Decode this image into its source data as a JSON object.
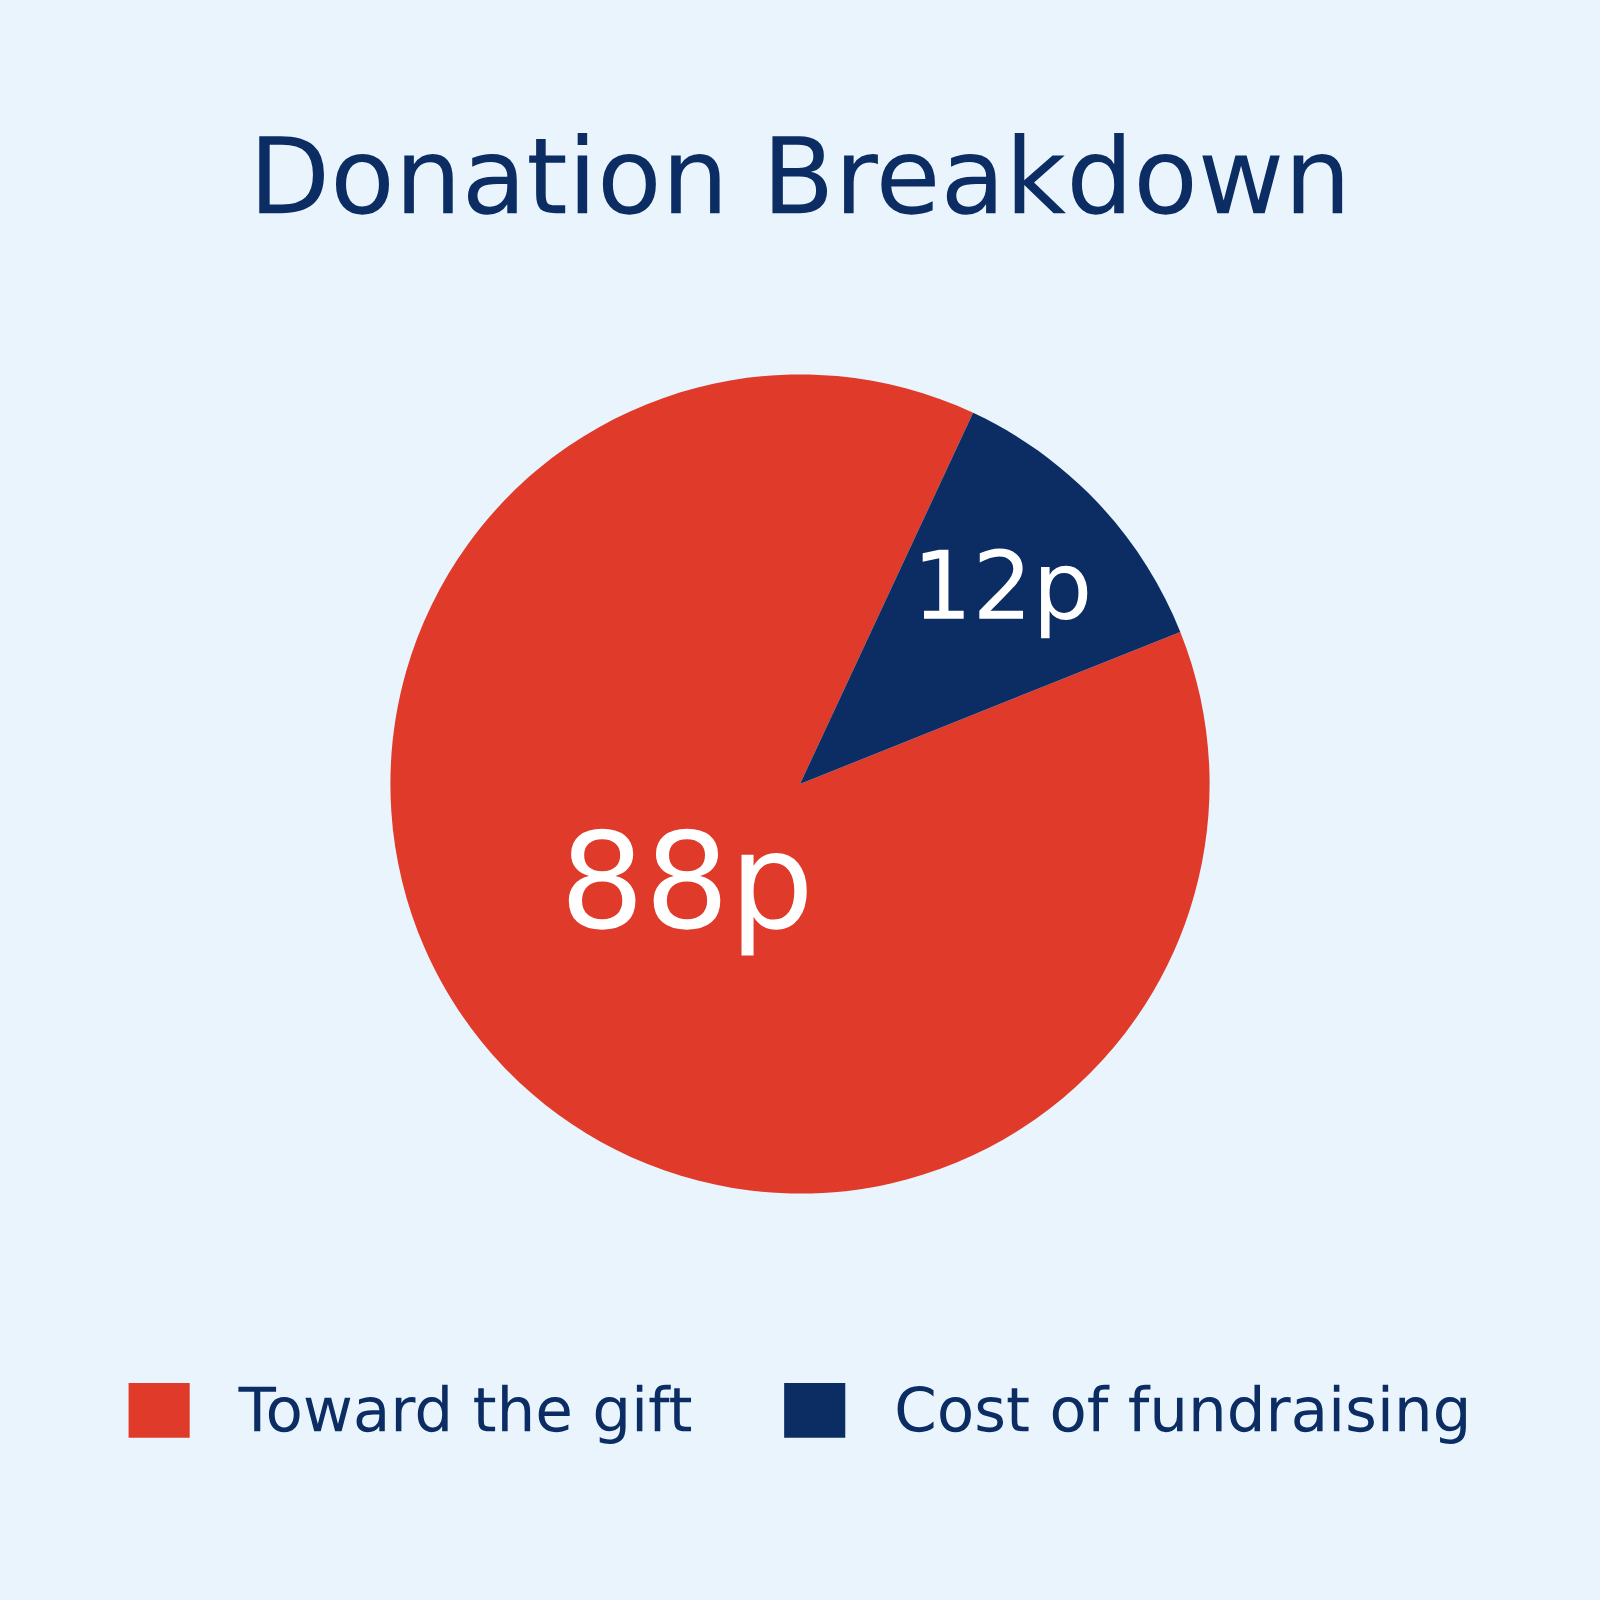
{
  "chart_data": {
    "type": "pie",
    "title": "Donation Breakdown",
    "categories": [
      "Toward the gift",
      "Cost of fundraising"
    ],
    "values": [
      88,
      12
    ],
    "colors": [
      "#e03a2a",
      "#0b2d64"
    ],
    "value_labels": [
      "88p",
      "12p"
    ],
    "legend": "bottom"
  }
}
